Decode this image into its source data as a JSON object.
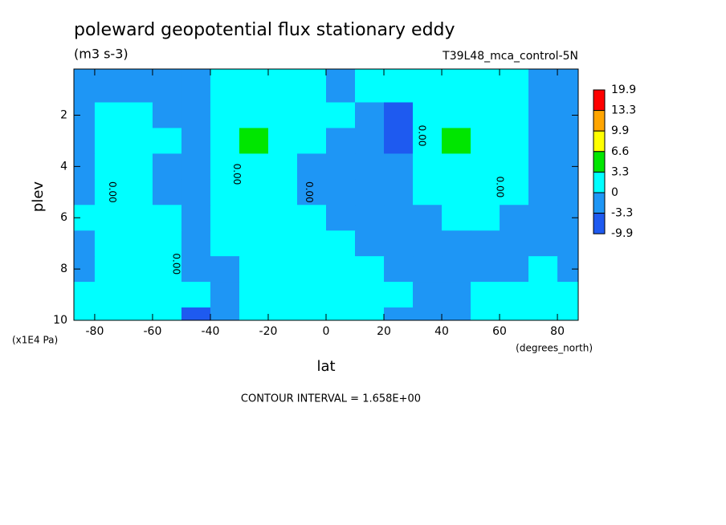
{
  "chart_data": {
    "type": "contour",
    "title": "poleward geopotential flux stationary eddy",
    "subtitle": "(m3 s-3)",
    "dataset": "T39L48_mca_control-5N",
    "xlabel": "lat",
    "ylabel": "plev",
    "xunits": "(degrees_north)",
    "yunits": "(x1E4 Pa)",
    "footnote": "CONTOUR INTERVAL = 1.658E+00",
    "xlim": [
      -87.2,
      87.2
    ],
    "ylim": [
      10,
      0.2
    ],
    "xticks": [
      -80,
      -60,
      -40,
      -20,
      0,
      20,
      40,
      60,
      80
    ],
    "yticks": [
      2,
      4,
      6,
      8,
      10
    ],
    "x": [
      -85,
      -75,
      -65,
      -55,
      -45,
      -35,
      -25,
      -15,
      -5,
      5,
      15,
      25,
      35,
      45,
      55,
      65,
      75,
      85
    ],
    "y": [
      1,
      2,
      3,
      4,
      5,
      6,
      7,
      8,
      9,
      10
    ],
    "z": [
      [
        -1,
        -1,
        -1,
        -1,
        -1,
        1,
        1,
        1,
        1,
        -1,
        1,
        1,
        1,
        1,
        1,
        1,
        -1,
        -1
      ],
      [
        -1,
        1,
        1,
        -1,
        -1,
        1,
        2,
        2,
        1,
        1,
        -2,
        -4,
        1,
        2,
        1,
        1,
        -1,
        -1
      ],
      [
        -1,
        1,
        1,
        1,
        -1,
        1,
        4,
        2,
        1,
        -1,
        -1,
        -4,
        1,
        4,
        1,
        1,
        -1,
        -1
      ],
      [
        -1,
        1,
        1,
        -1,
        -1,
        1,
        1,
        1,
        -1,
        -1,
        -1,
        -1,
        1,
        1,
        1,
        1,
        -1,
        -1
      ],
      [
        -1,
        1,
        1,
        -1,
        -1,
        1,
        1,
        1,
        -1,
        -1,
        -1,
        -1,
        1,
        1,
        1,
        1,
        -1,
        -1
      ],
      [
        1,
        1,
        1,
        1,
        -1,
        1,
        1,
        1,
        1,
        -1,
        -1,
        -1,
        -1,
        1,
        1,
        -1,
        -1,
        -1
      ],
      [
        -1,
        1,
        1,
        1,
        -1,
        1,
        1,
        1,
        1,
        1,
        -1,
        -1,
        -1,
        -1,
        -1,
        -1,
        -1,
        -1
      ],
      [
        -1,
        1,
        1,
        1,
        -1,
        -1,
        1,
        1,
        1,
        1,
        1,
        -1,
        -1,
        -1,
        -1,
        -1,
        1,
        -1
      ],
      [
        1,
        1,
        1,
        1,
        1,
        -1,
        1,
        1,
        1,
        1,
        1,
        1,
        -1,
        -1,
        1,
        1,
        1,
        1
      ],
      [
        1,
        1,
        1,
        1,
        -4,
        -1,
        1,
        1,
        1,
        1,
        1,
        -1,
        -1,
        -1,
        1,
        1,
        1,
        1
      ]
    ],
    "levels": [
      19.9,
      13.3,
      9.9,
      6.6,
      3.3,
      0,
      -3.3,
      -9.9
    ],
    "colors": [
      "#ff0000",
      "#ffa500",
      "#ffff00",
      "#00e600",
      "#00ffff",
      "#1e96f5",
      "#1e5af0"
    ],
    "contour_labels": [
      {
        "text": "0.00",
        "x": -74,
        "y": 5
      },
      {
        "text": "0.00",
        "x": -52,
        "y": 7.8
      },
      {
        "text": "0.00",
        "x": -31,
        "y": 4.3
      },
      {
        "text": "0.00",
        "x": -6,
        "y": 5
      },
      {
        "text": "0.00",
        "x": 33,
        "y": 2.8
      },
      {
        "text": "0.00",
        "x": 60,
        "y": 4.8
      }
    ]
  }
}
